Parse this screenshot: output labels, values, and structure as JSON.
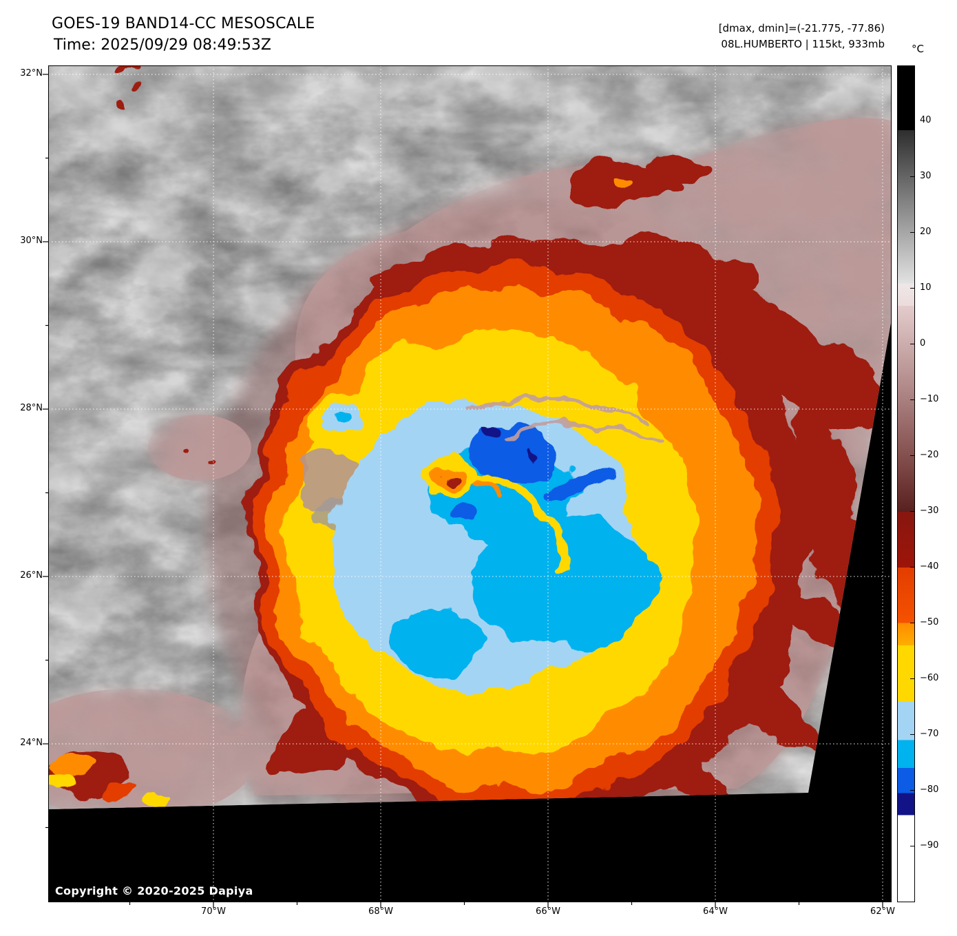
{
  "header": {
    "title_line1": "GOES-19 BAND14-CC MESOSCALE",
    "title_line2": "Time: 2025/09/29 08:49:53Z",
    "dmax_dmin": "[dmax, dmin]=(-21.775, -77.86)",
    "storm_info": "08L.HUMBERTO | 115kt, 933mb"
  },
  "map": {
    "copyright": "Copyright © 2020-2025 Dapiya",
    "lat_tick_labels": [
      "32°N",
      "30°N",
      "28°N",
      "26°N",
      "24°N"
    ],
    "lon_tick_labels": [
      "70°W",
      "68°W",
      "66°W",
      "64°W",
      "62°W"
    ]
  },
  "colorbar": {
    "unit": "°C",
    "tick_labels": [
      "40",
      "30",
      "20",
      "10",
      "0",
      "−10",
      "−20",
      "−30",
      "−40",
      "−50",
      "−60",
      "−70",
      "−80",
      "−90"
    ],
    "range_top_c": 50,
    "range_bottom_c": -100,
    "stops": [
      {
        "t": 50,
        "color": "#000000"
      },
      {
        "t": 38.5,
        "color": "#000000"
      },
      {
        "t": 38.5,
        "color": "#2e2e2e"
      },
      {
        "t": 11,
        "color": "#e2e2e2"
      },
      {
        "t": 11,
        "color": "#efe7e7"
      },
      {
        "t": 7,
        "color": "#ecdcdc"
      },
      {
        "t": 7,
        "color": "#e4cccc"
      },
      {
        "t": -8,
        "color": "#b08888"
      },
      {
        "t": -22,
        "color": "#7c4644"
      },
      {
        "t": -30,
        "color": "#58201e"
      },
      {
        "t": -30,
        "color": "#871710"
      },
      {
        "t": -40,
        "color": "#9e1408"
      },
      {
        "t": -40,
        "color": "#e33d00"
      },
      {
        "t": -50,
        "color": "#f55200"
      },
      {
        "t": -50,
        "color": "#ff8c00"
      },
      {
        "t": -54,
        "color": "#ffae00"
      },
      {
        "t": -54,
        "color": "#ffd800"
      },
      {
        "t": -64,
        "color": "#ffd800"
      },
      {
        "t": -64,
        "color": "#a4d4f4"
      },
      {
        "t": -71,
        "color": "#a4d4f4"
      },
      {
        "t": -71,
        "color": "#00b2ee"
      },
      {
        "t": -76,
        "color": "#00b2ee"
      },
      {
        "t": -76,
        "color": "#0c5ce6"
      },
      {
        "t": -80.5,
        "color": "#0c5ce6"
      },
      {
        "t": -80.5,
        "color": "#131388"
      },
      {
        "t": -84.5,
        "color": "#131388"
      },
      {
        "t": -84.5,
        "color": "#ffffff"
      },
      {
        "t": -100,
        "color": "#ffffff"
      }
    ]
  },
  "palette": {
    "gray_base": "#8f8f8f",
    "cloud_light": "#dbdbdb",
    "mauve": "#b29494",
    "mauve_dark": "#8a6060",
    "maroon": "#9e1c10",
    "orange_red": "#e33d00",
    "orange": "#ff8c00",
    "yellow": "#ffd800",
    "light_blue": "#a4d4f4",
    "cyan": "#00b2ee",
    "blue": "#0c5ce6",
    "navy": "#131388",
    "background_black": "#000000"
  }
}
